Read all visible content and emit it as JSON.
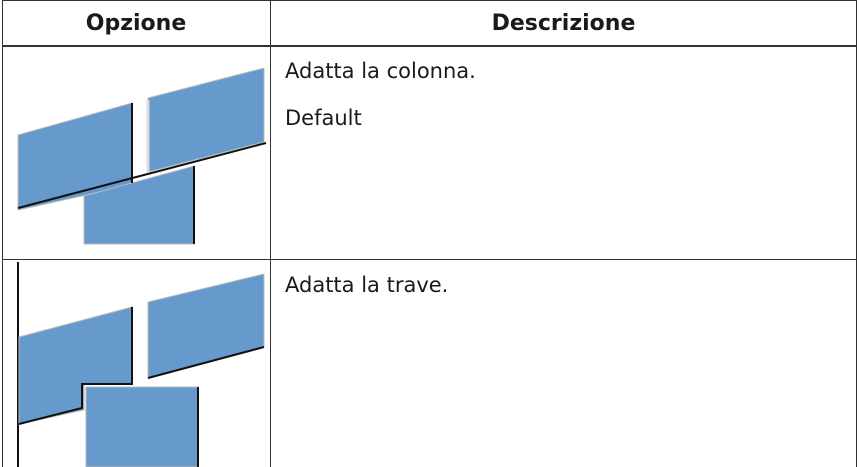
{
  "table": {
    "headers": [
      "Opzione",
      "Descrizione"
    ],
    "rows": [
      {
        "description": [
          "Adatta la colonna.",
          "Default"
        ]
      },
      {
        "description": [
          "Adatta la trave."
        ]
      }
    ]
  }
}
